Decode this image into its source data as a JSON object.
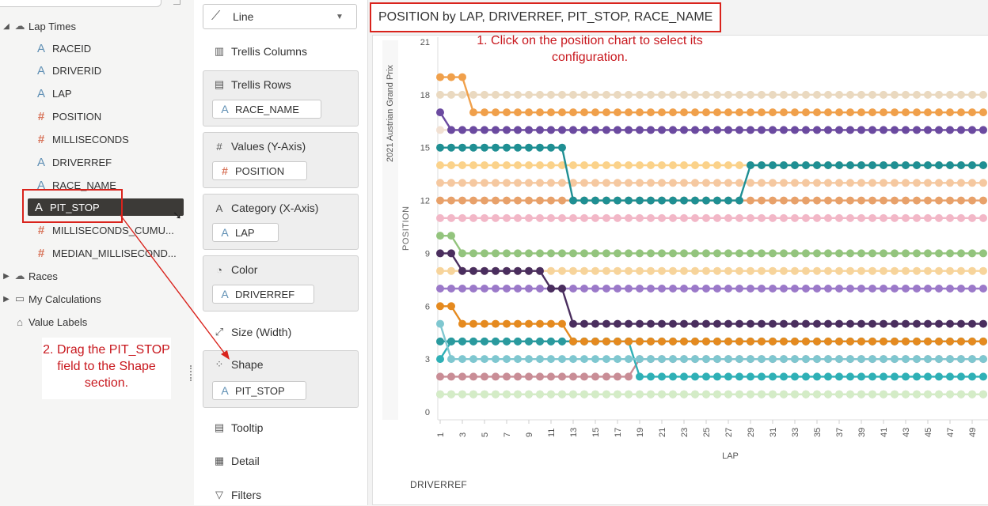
{
  "data_panel": {
    "tree": {
      "lap_times": "Lap Times",
      "fields": [
        {
          "name": "RACEID",
          "type": "attribute"
        },
        {
          "name": "DRIVERID",
          "type": "attribute"
        },
        {
          "name": "LAP",
          "type": "attribute"
        },
        {
          "name": "POSITION",
          "type": "measure"
        },
        {
          "name": "MILLISECONDS",
          "type": "measure"
        },
        {
          "name": "DRIVERREF",
          "type": "attribute"
        },
        {
          "name": "RACE_NAME",
          "type": "attribute"
        },
        {
          "name": "PIT_STOP",
          "type": "attribute",
          "selected": true
        },
        {
          "name": "MILLISECONDS_CUMU...",
          "type": "measure"
        },
        {
          "name": "MEDIAN_MILLISECOND...",
          "type": "measure"
        }
      ],
      "races": "Races",
      "my_calculations": "My Calculations",
      "value_labels": "Value Labels"
    },
    "annotation": "2. Drag the PIT_STOP field to the Shape section."
  },
  "grammar": {
    "viz_type": "Line",
    "trellis_columns": "Trellis Columns",
    "trellis_rows": {
      "label": "Trellis Rows",
      "value": "RACE_NAME"
    },
    "values_y": {
      "label": "Values (Y-Axis)",
      "value": "POSITION"
    },
    "category_x": {
      "label": "Category (X-Axis)",
      "value": "LAP"
    },
    "color": {
      "label": "Color",
      "value": "DRIVERREF"
    },
    "size": "Size (Width)",
    "shape": {
      "label": "Shape",
      "value": "PIT_STOP"
    },
    "tooltip": "Tooltip",
    "detail": "Detail",
    "filters": "Filters"
  },
  "canvas": {
    "chart_title": "POSITION by LAP, DRIVERREF, PIT_STOP, RACE_NAME",
    "annotation": "1. Click on the position chart to select its configuration.",
    "legend_title": "DRIVERREF"
  },
  "colors": {
    "annotation_red": "#d9231c",
    "teal": "#2a9a9e",
    "orange": "#e58a1f",
    "green": "#93c47d",
    "purple": "#9b79c9",
    "dark_purple": "#4a2e5e",
    "peach": "#f7d49b",
    "light_teal": "#7fc7d0",
    "rose": "#c98d96"
  },
  "chart_data": {
    "type": "line",
    "xlabel": "LAP",
    "ylabel": "POSITION",
    "trellis_row_label": "2021 Austrian Grand Prix",
    "x_ticks": [
      "1",
      "3",
      "5",
      "7",
      "9",
      "11",
      "13",
      "15",
      "17",
      "19",
      "21",
      "23",
      "25",
      "27",
      "29",
      "31",
      "33",
      "35",
      "37",
      "39",
      "41",
      "43",
      "45",
      "47",
      "49"
    ],
    "y_ticks": [
      "0",
      "3",
      "6",
      "9",
      "12",
      "15",
      "18",
      "21"
    ],
    "ylim": [
      0,
      21
    ],
    "xlim": [
      1,
      50
    ],
    "series_note": "one line per driver, colored by DRIVERREF; lap-by-lap positions",
    "series": [
      {
        "color": "#b9b9b9",
        "start_pos": 1,
        "changes": []
      },
      {
        "color": "#d4ecc7",
        "start_pos": 1,
        "changes": []
      },
      {
        "color": "#c98d96",
        "start_pos": 2,
        "changes": [
          [
            19,
            3
          ]
        ]
      },
      {
        "color": "#2fb0b6",
        "start_pos": 3,
        "changes": [
          [
            2,
            4
          ],
          [
            19,
            2
          ]
        ]
      },
      {
        "color": "#2a9a9e",
        "start_pos": 4,
        "changes": []
      },
      {
        "color": "#7fc7d0",
        "start_pos": 5,
        "changes": [
          [
            2,
            3
          ]
        ]
      },
      {
        "color": "#e58a1f",
        "start_pos": 6,
        "changes": [
          [
            3,
            5
          ],
          [
            13,
            4
          ]
        ]
      },
      {
        "color": "#9b79c9",
        "start_pos": 7,
        "changes": []
      },
      {
        "color": "#f7d49b",
        "start_pos": 8,
        "changes": []
      },
      {
        "color": "#4a2e5e",
        "start_pos": 9,
        "changes": [
          [
            3,
            8
          ],
          [
            11,
            7
          ],
          [
            13,
            5
          ]
        ]
      },
      {
        "color": "#93c47d",
        "start_pos": 10,
        "changes": [
          [
            3,
            9
          ]
        ]
      },
      {
        "color": "#f2b7c7",
        "start_pos": 11,
        "changes": []
      },
      {
        "color": "#e8a16a",
        "start_pos": 12,
        "changes": []
      },
      {
        "color": "#f5c8a0",
        "start_pos": 13,
        "changes": []
      },
      {
        "color": "#fbd28a",
        "start_pos": 14,
        "changes": []
      },
      {
        "color": "#1f8f93",
        "start_pos": 15,
        "changes": [
          [
            13,
            12
          ],
          [
            29,
            14
          ]
        ]
      },
      {
        "color": "#f1e0d2",
        "start_pos": 16,
        "changes": []
      },
      {
        "color": "#6b4aa0",
        "start_pos": 17,
        "changes": [
          [
            2,
            16
          ],
          [
            19,
            16
          ]
        ]
      },
      {
        "color": "#ead9c0",
        "start_pos": 18,
        "changes": []
      },
      {
        "color": "#f0a04b",
        "start_pos": 19,
        "changes": [
          [
            4,
            17
          ]
        ]
      }
    ]
  }
}
